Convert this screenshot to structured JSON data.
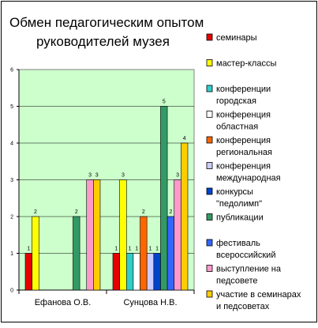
{
  "chart_data": {
    "type": "bar",
    "title_lines": [
      "Обмен педагогическим опытом",
      "руководителей музея"
    ],
    "categories": [
      "Ефанова О.В.",
      "Сунцова Н.В."
    ],
    "ylim": [
      0,
      6
    ],
    "y_ticks": [
      "0",
      "1",
      "2",
      "3",
      "4",
      "5",
      "6"
    ],
    "grid": true,
    "legend_position": "right",
    "plot_background": "#ccffcc",
    "series": [
      {
        "name": "семинары",
        "lines": [
          "семинары"
        ],
        "color": "#e60000",
        "values": [
          1,
          1
        ]
      },
      {
        "name": "мастер-классы",
        "lines": [
          "мастер-классы"
        ],
        "color": "#ffff00",
        "values": [
          2,
          3
        ]
      },
      {
        "name": "конференции городская",
        "lines": [
          "конференции",
          "городская"
        ],
        "color": "#33cccc",
        "values": [
          null,
          1
        ]
      },
      {
        "name": "конференция областная",
        "lines": [
          "конференция",
          "областная"
        ],
        "color": "#ffffff",
        "values": [
          null,
          1
        ]
      },
      {
        "name": "конференция региональная",
        "lines": [
          "конференция",
          "региональная"
        ],
        "color": "#ff6600",
        "values": [
          null,
          2
        ]
      },
      {
        "name": "конференция международная",
        "lines": [
          "конференция",
          "международная"
        ],
        "color": "#ccccff",
        "values": [
          null,
          1
        ]
      },
      {
        "name": "конкурсы \"педолимп\"",
        "lines": [
          "конкурсы",
          "\"педолимп\""
        ],
        "color": "#0044cc",
        "values": [
          null,
          1
        ]
      },
      {
        "name": "публикации",
        "lines": [
          "публикации"
        ],
        "color": "#339966",
        "values": [
          2,
          5
        ]
      },
      {
        "name": "фестиваль всероссийский",
        "lines": [
          "фестиваль",
          "всероссийский"
        ],
        "color": "#3366ff",
        "values": [
          null,
          2
        ]
      },
      {
        "name": "выступление на педсовете",
        "lines": [
          "выступление на",
          "педсовете"
        ],
        "color": "#ff99cc",
        "values": [
          3,
          3
        ]
      },
      {
        "name": "участие в семинарах и педсоветах",
        "lines": [
          "участие в семинарах",
          "и педсоветах"
        ],
        "color": "#ffcc00",
        "values": [
          3,
          4
        ]
      }
    ]
  }
}
